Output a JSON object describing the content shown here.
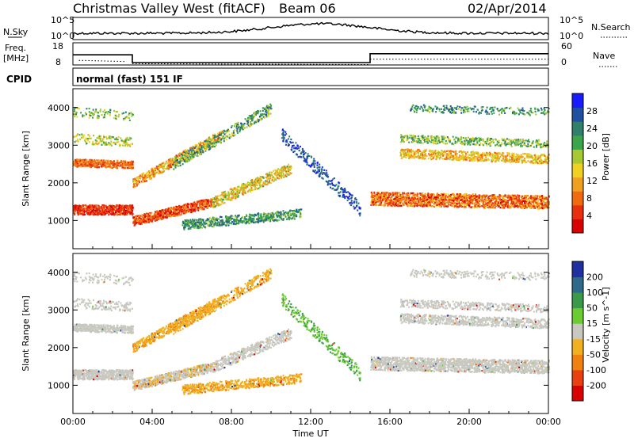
{
  "header": {
    "station": "Christmas Valley West (fitACF)",
    "beam": "Beam 06",
    "date": "02/Apr/2014"
  },
  "noise_panel": {
    "left_label": "N.Sky",
    "right_label": "N.Search",
    "left_ticks": [
      "10^5",
      "10^0"
    ],
    "right_ticks": [
      "10^5",
      "10^0"
    ]
  },
  "freq_panel": {
    "left_label_line1": "Freq.",
    "left_label_line2": "[MHz]",
    "left_ticks": [
      "18",
      "8"
    ],
    "right_label": "Nave",
    "right_ticks": [
      "60",
      "0"
    ]
  },
  "cpid": {
    "label": "CPID",
    "value": "normal (fast) 151 IF"
  },
  "chart_data": [
    {
      "type": "heatmap",
      "name": "power",
      "ylabel": "Slant Range [km]",
      "yticks": [
        1000,
        2000,
        3000,
        4000
      ],
      "colorbar_label": "Power [dB]",
      "colorbar_ticks": [
        4,
        8,
        12,
        16,
        20,
        24,
        28
      ],
      "colors": [
        "#1a1aff",
        "#2050a0",
        "#2f7f6a",
        "#3aa54a",
        "#a8c832",
        "#f0d020",
        "#f0a020",
        "#f06a10",
        "#e83010",
        "#d80000"
      ]
    },
    {
      "type": "heatmap",
      "name": "velocity",
      "ylabel": "Slant Range [km]",
      "yticks": [
        1000,
        2000,
        3000,
        4000
      ],
      "colorbar_label": "Velocity [m s^-1]",
      "colorbar_ticks": [
        200,
        100,
        50,
        15,
        -15,
        -50,
        -100,
        -200
      ],
      "colors": [
        "#2030a0",
        "#2f6a8a",
        "#3a9a4a",
        "#6acc30",
        "#c8c8c0",
        "#f0b020",
        "#f08010",
        "#e84010",
        "#d80000"
      ]
    }
  ],
  "time_axis": {
    "label": "Time UT",
    "ticks": [
      "00:00",
      "04:00",
      "08:00",
      "12:00",
      "16:00",
      "20:00",
      "00:00"
    ]
  }
}
